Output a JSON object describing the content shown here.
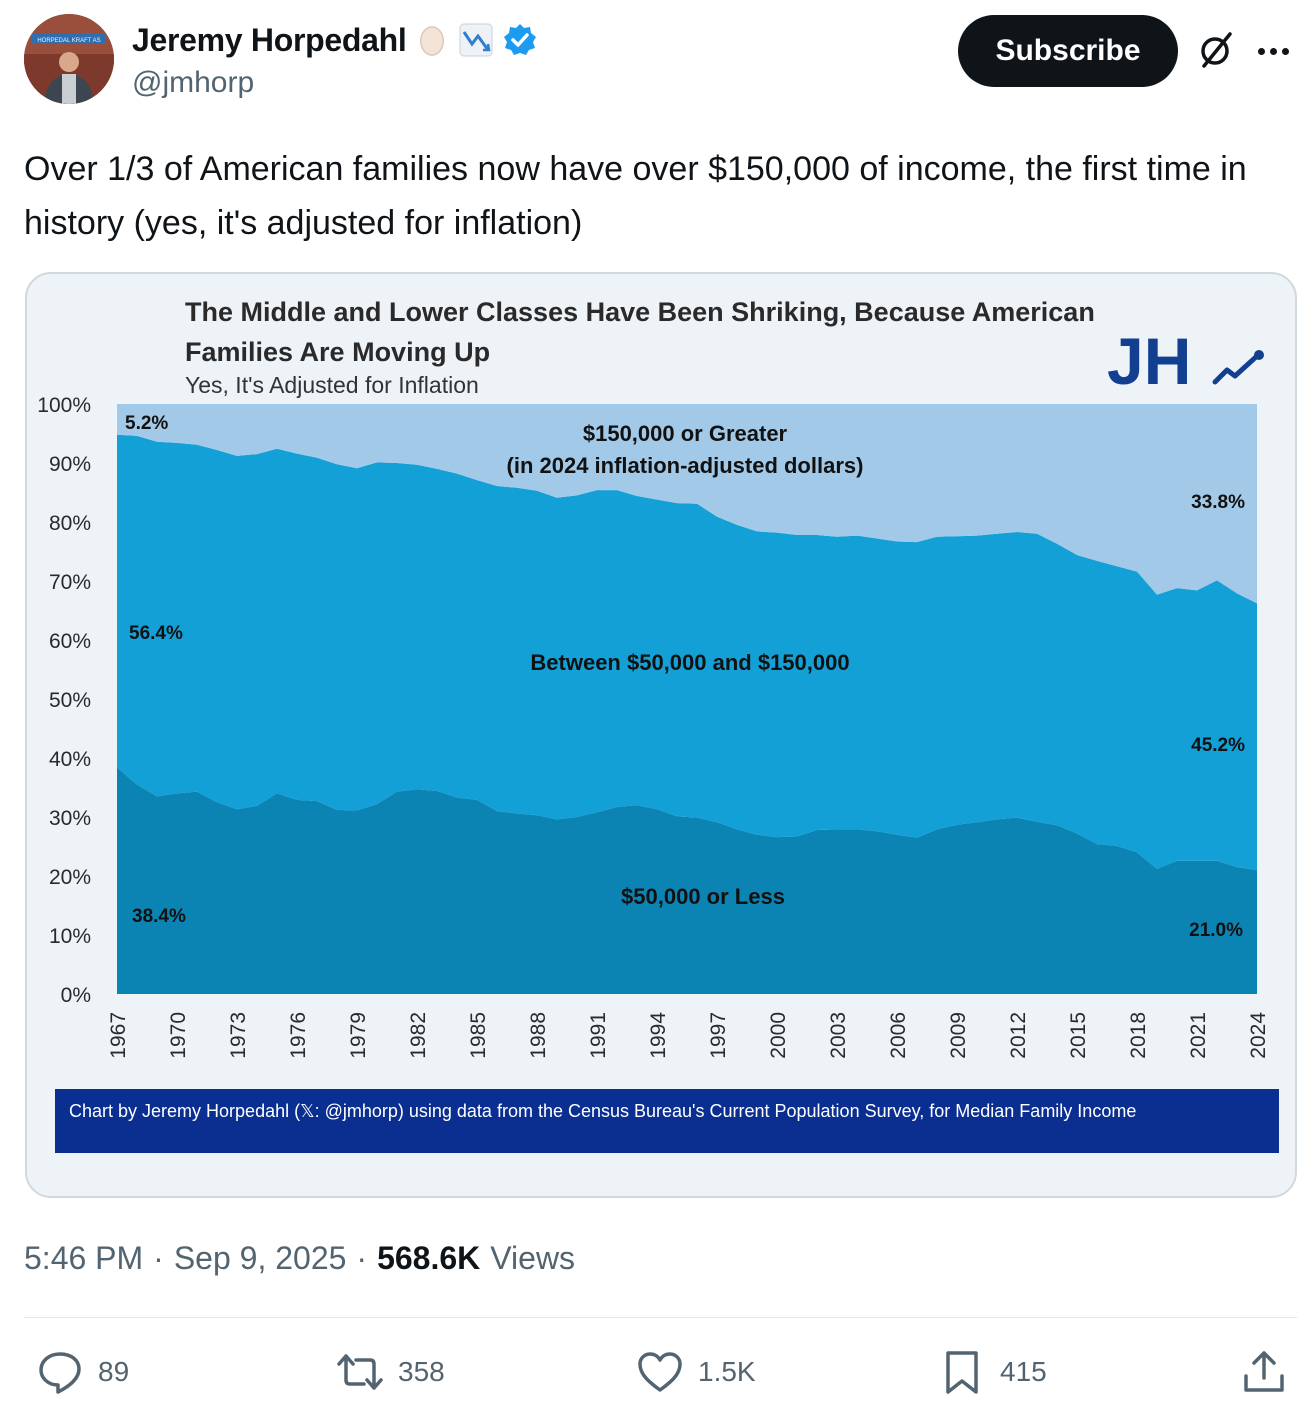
{
  "author": {
    "display_name": "Jeremy Horpedahl",
    "handle": "@jmhorp",
    "badges": [
      "egg-emoji",
      "chart-decreasing-emoji",
      "verified-icon"
    ],
    "avatar_sign_text": "HORPEDAL KRAFT AS"
  },
  "header": {
    "subscribe_label": "Subscribe"
  },
  "tweet": {
    "text": "Over 1/3 of American families now have over $150,000 of income, the first time in history (yes, it's adjusted for inflation)"
  },
  "chart_data": {
    "type": "area",
    "stacked": true,
    "title": "The Middle and Lower Classes Have Been Shriking, Because American Families Are Moving Up",
    "subtitle": "Yes, It's Adjusted for Inflation",
    "logo_text": "JH",
    "ylim": [
      0,
      100
    ],
    "y_ticks": [
      "0%",
      "10%",
      "20%",
      "30%",
      "40%",
      "50%",
      "60%",
      "70%",
      "80%",
      "90%",
      "100%"
    ],
    "x_ticks": [
      "1967",
      "1970",
      "1973",
      "1976",
      "1979",
      "1982",
      "1985",
      "1988",
      "1991",
      "1994",
      "1997",
      "2000",
      "2003",
      "2006",
      "2009",
      "2012",
      "2015",
      "2018",
      "2021",
      "2024"
    ],
    "x": [
      1967,
      1968,
      1969,
      1970,
      1971,
      1972,
      1973,
      1974,
      1975,
      1976,
      1977,
      1978,
      1979,
      1980,
      1981,
      1982,
      1983,
      1984,
      1985,
      1986,
      1987,
      1988,
      1989,
      1990,
      1991,
      1992,
      1993,
      1994,
      1995,
      1996,
      1997,
      1998,
      1999,
      2000,
      2001,
      2002,
      2003,
      2004,
      2005,
      2006,
      2007,
      2008,
      2009,
      2010,
      2011,
      2012,
      2013,
      2014,
      2015,
      2016,
      2017,
      2018,
      2019,
      2020,
      2021,
      2022,
      2023,
      2024
    ],
    "series": [
      {
        "name": "$50,000 or Less",
        "color": "#0b84b4",
        "values": [
          38.4,
          35.5,
          33.5,
          34.0,
          34.3,
          32.5,
          31.3,
          31.9,
          34.0,
          32.9,
          32.7,
          31.2,
          31.1,
          32.2,
          34.3,
          34.7,
          34.4,
          33.3,
          32.9,
          31.0,
          30.6,
          30.3,
          29.6,
          30.0,
          30.8,
          31.7,
          32.0,
          31.3,
          30.1,
          29.9,
          29.1,
          27.9,
          27.0,
          26.6,
          26.7,
          27.8,
          27.9,
          27.9,
          27.6,
          27.0,
          26.5,
          27.9,
          28.7,
          29.1,
          29.6,
          29.9,
          29.2,
          28.6,
          27.2,
          25.4,
          25.1,
          24.0,
          21.2,
          22.6,
          22.6,
          22.6,
          21.5,
          21.0
        ]
      },
      {
        "name": "Between $50,000 and $150,000",
        "color": "#12a0d7",
        "values": [
          56.4,
          59.1,
          60.1,
          59.4,
          58.8,
          59.7,
          59.9,
          59.6,
          58.4,
          58.7,
          58.2,
          58.6,
          58.0,
          57.9,
          55.7,
          55.0,
          54.6,
          54.9,
          54.2,
          55.1,
          55.2,
          55.0,
          54.5,
          54.5,
          54.6,
          53.7,
          52.4,
          52.5,
          53.1,
          53.2,
          51.8,
          51.6,
          51.4,
          51.6,
          51.1,
          50.0,
          49.6,
          49.8,
          49.6,
          49.7,
          50.1,
          49.6,
          48.9,
          48.6,
          48.4,
          48.4,
          48.8,
          47.7,
          47.2,
          48.0,
          47.4,
          47.6,
          46.5,
          46.2,
          45.8,
          47.5,
          46.4,
          45.2
        ]
      },
      {
        "name": "$150,000 or Greater",
        "name_line2": "(in 2024 inflation-adjusted dollars)",
        "color": "#a3c9e8",
        "values": [
          5.2,
          5.4,
          6.4,
          6.6,
          6.9,
          7.8,
          8.8,
          8.5,
          7.6,
          8.4,
          9.1,
          10.2,
          10.9,
          9.9,
          10.0,
          10.3,
          11.0,
          11.8,
          12.9,
          13.9,
          14.2,
          14.7,
          15.9,
          15.5,
          14.6,
          14.6,
          15.6,
          16.2,
          16.8,
          16.9,
          19.1,
          20.5,
          21.6,
          21.8,
          22.2,
          22.2,
          22.5,
          22.3,
          22.8,
          23.3,
          23.4,
          22.5,
          22.4,
          22.3,
          22.0,
          21.7,
          22.0,
          23.7,
          25.6,
          26.6,
          27.5,
          28.4,
          32.3,
          31.2,
          31.6,
          29.9,
          32.1,
          33.8
        ]
      }
    ],
    "labels": {
      "start_top": "5.2%",
      "start_mid": "56.4%",
      "start_low": "38.4%",
      "end_top": "33.8%",
      "end_mid": "45.2%",
      "end_low": "21.0%"
    },
    "source_note": "Chart by Jeremy Horpedahl (𝕏: @jmhorp) using data from the Census Bureau's Current Population Survey, for Median Family Income"
  },
  "meta": {
    "time": "5:46 PM",
    "separator": "·",
    "date": "Sep 9, 2025",
    "views_count": "568.6K",
    "views_label": "Views"
  },
  "actions": {
    "replies": "89",
    "reposts": "358",
    "likes": "1.5K",
    "bookmarks": "415"
  }
}
